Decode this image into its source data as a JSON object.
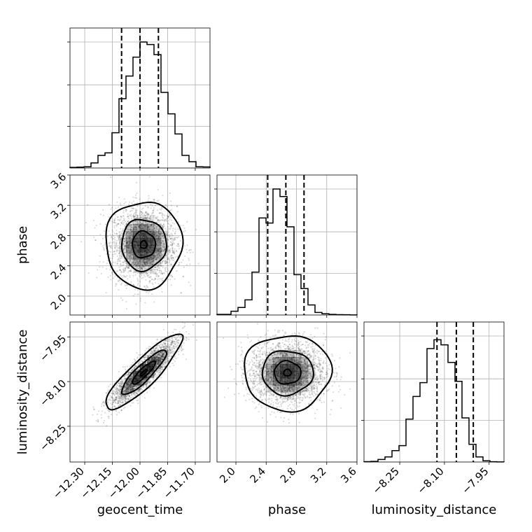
{
  "chart_data": {
    "type": "corner",
    "parameters": [
      {
        "name": "geocent_time",
        "axis_label": "geocent_time",
        "range": [
          -12.38,
          -11.62
        ],
        "ticks": [
          -12.3,
          -12.15,
          -12.0,
          -11.85,
          -11.7
        ],
        "tick_labels": [
          "−12.30",
          "−12.15",
          "−12.00",
          "−11.85",
          "−11.70"
        ],
        "quantiles": [
          -12.1,
          -12.0,
          -11.9
        ],
        "histogram": [
          0.005,
          0.007,
          0.01,
          0.04,
          0.1,
          0.12,
          0.28,
          0.55,
          0.73,
          0.88,
          1.0,
          0.98,
          0.9,
          0.6,
          0.43,
          0.27,
          0.1,
          0.05,
          0.01,
          0.008
        ]
      },
      {
        "name": "phase",
        "axis_label": "phase",
        "range": [
          1.75,
          3.6
        ],
        "ticks": [
          2.0,
          2.4,
          2.8,
          3.2,
          3.6
        ],
        "tick_labels": [
          "2.0",
          "2.4",
          "2.8",
          "3.2",
          "3.6"
        ],
        "quantiles": [
          2.42,
          2.66,
          2.9
        ],
        "histogram": [
          0.005,
          0.005,
          0.03,
          0.06,
          0.12,
          0.34,
          0.77,
          0.73,
          1.0,
          0.94,
          0.7,
          0.32,
          0.21,
          0.08,
          0.02,
          0.01,
          0.005,
          0.003,
          0.002,
          0.001
        ]
      },
      {
        "name": "luminosity_distance",
        "axis_label": "luminosity_distance",
        "range": [
          -8.37,
          -7.9
        ],
        "ticks": [
          -8.25,
          -8.1,
          -7.95
        ],
        "tick_labels": [
          "−8.25",
          "−8.10",
          "−7.95"
        ],
        "quantiles": [
          -8.125,
          -8.06,
          -8.003
        ],
        "histogram": [
          0.003,
          0.005,
          0.02,
          0.04,
          0.09,
          0.13,
          0.34,
          0.52,
          0.63,
          0.9,
          0.97,
          0.93,
          0.79,
          0.64,
          0.35,
          0.14,
          0.04,
          0.01,
          0.002,
          0.001
        ]
      }
    ],
    "pairs": [
      {
        "x": "geocent_time",
        "y": "phase",
        "center": [
          -11.98,
          2.68
        ],
        "sigma": [
          0.09,
          0.25
        ],
        "rho": 0.0
      },
      {
        "x": "geocent_time",
        "y": "luminosity_distance",
        "center": [
          -11.98,
          -8.07
        ],
        "sigma": [
          0.09,
          0.055
        ],
        "rho": 0.88
      },
      {
        "x": "phase",
        "y": "luminosity_distance",
        "center": [
          2.68,
          -8.07
        ],
        "sigma": [
          0.25,
          0.055
        ],
        "rho": 0.0
      }
    ],
    "hist_yticks": [
      0.33,
      0.66,
      1.0
    ],
    "grid": true
  }
}
